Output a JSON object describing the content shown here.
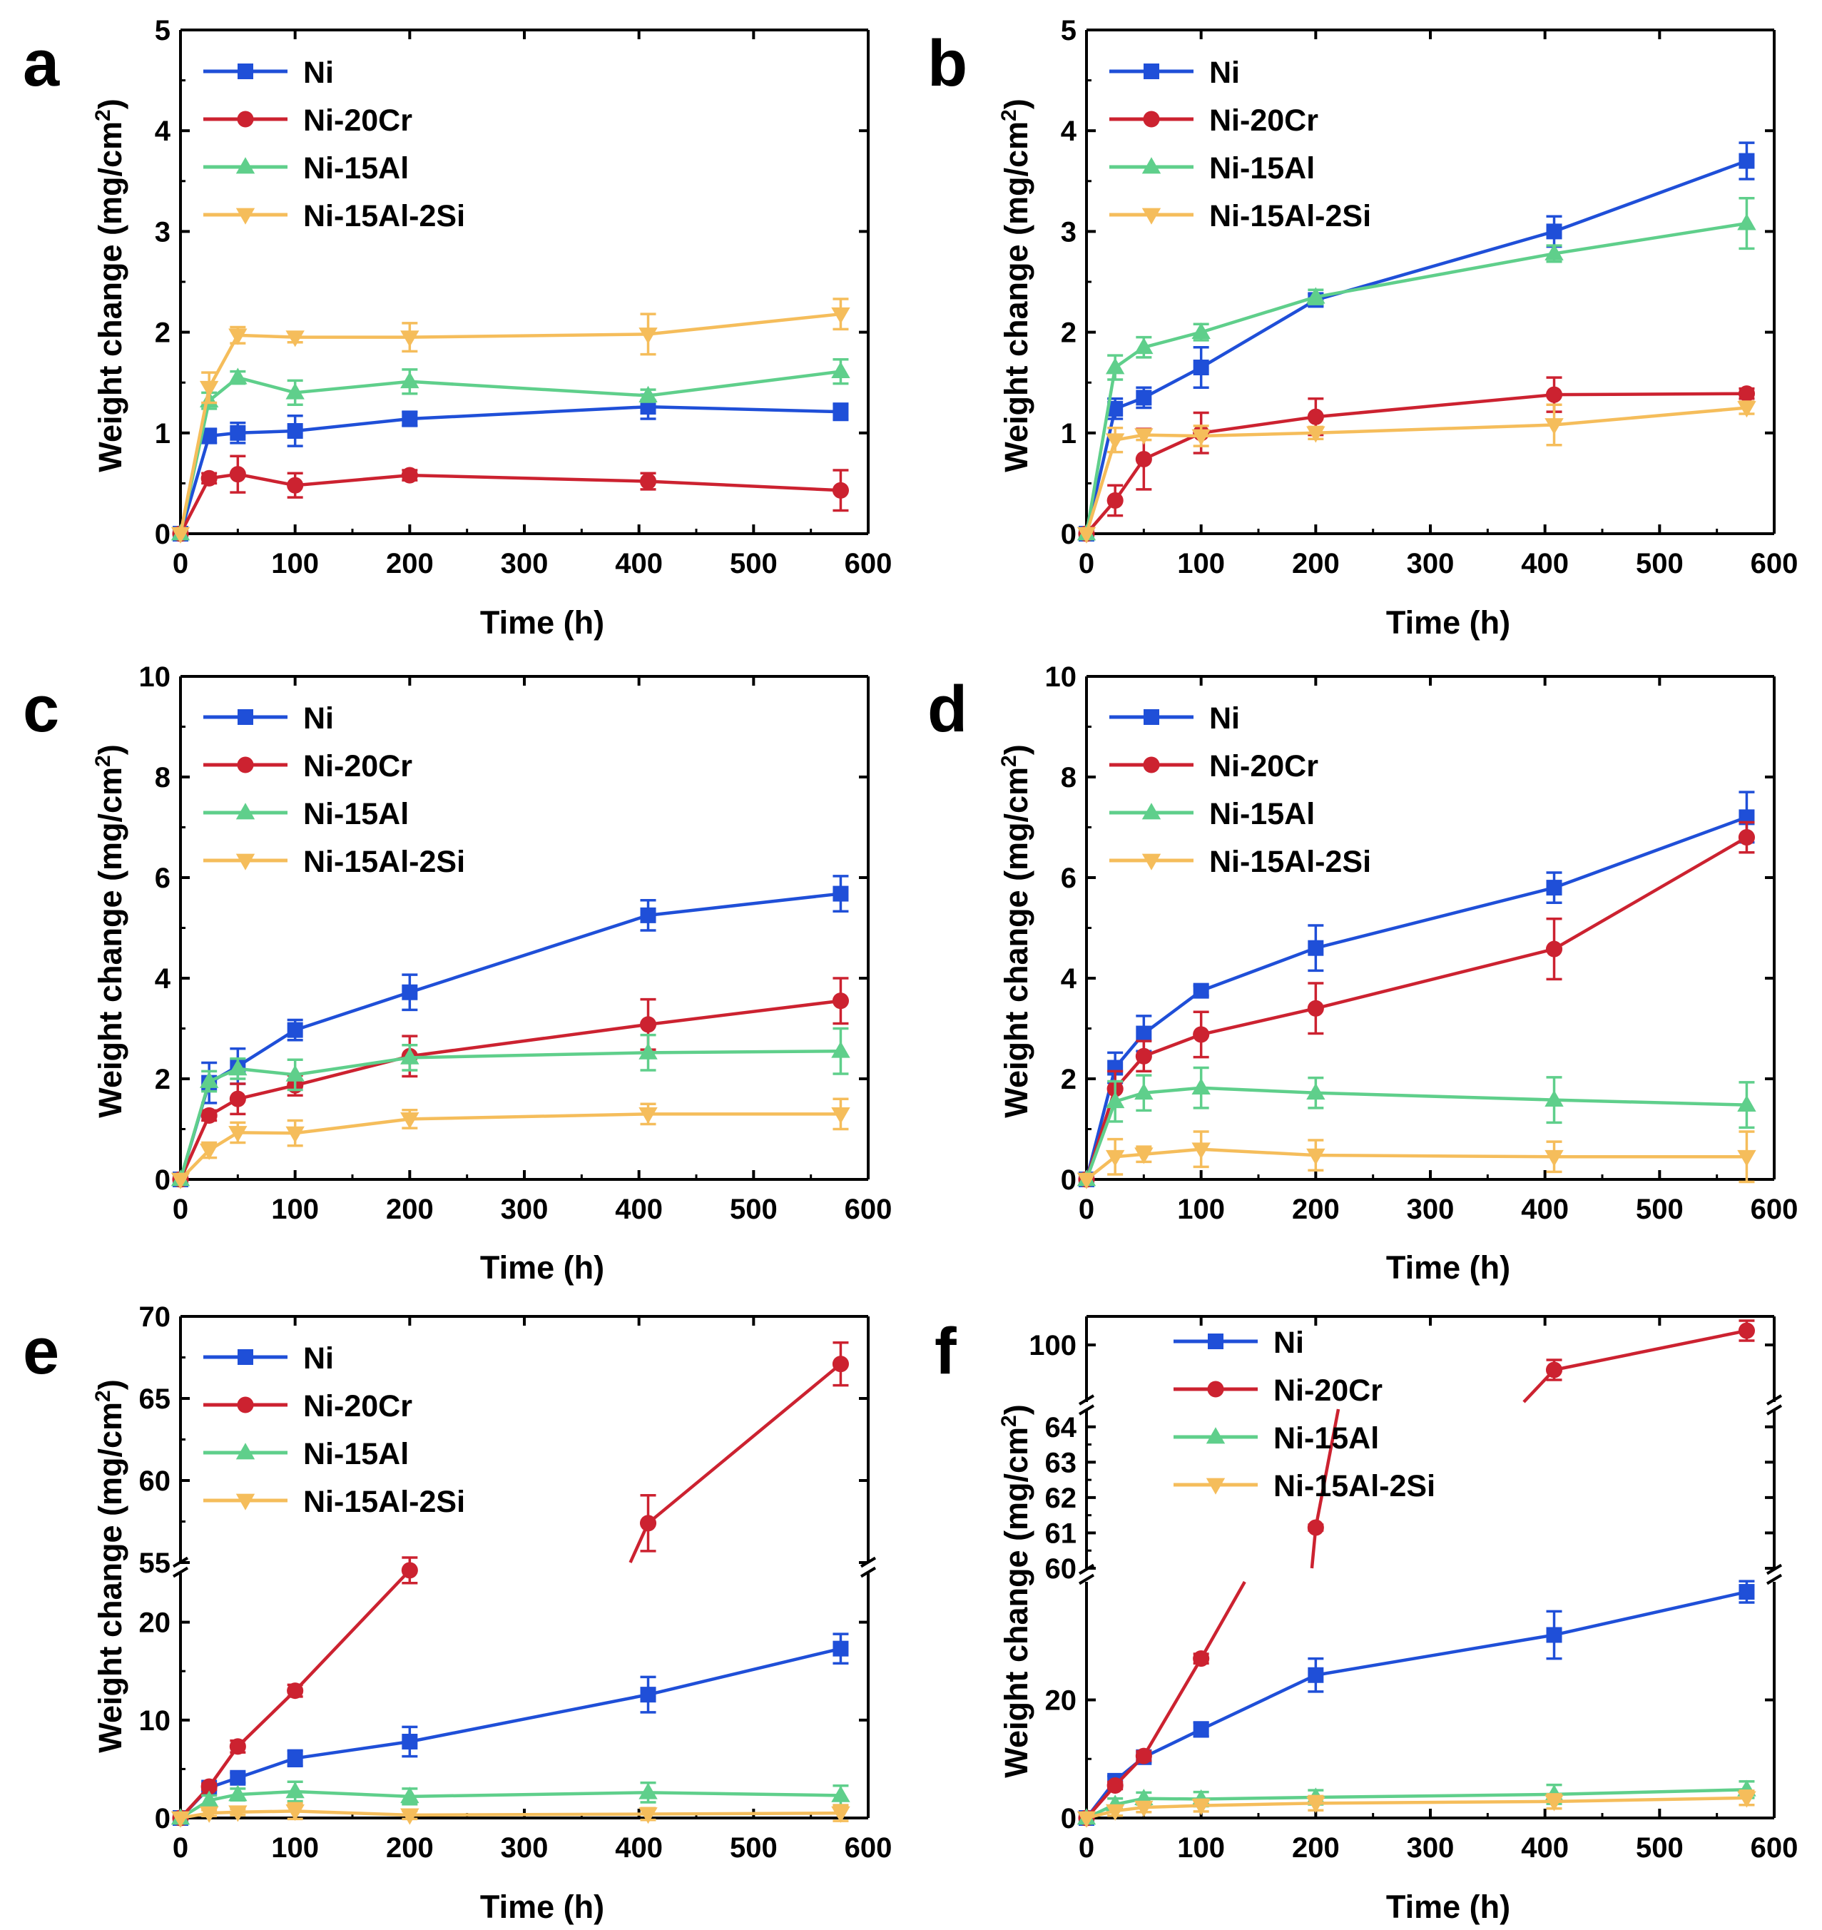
{
  "figure": {
    "series_names": [
      "Ni",
      "Ni-20Cr",
      "Ni-15Al",
      "Ni-15Al-2Si"
    ],
    "series_colors": [
      "#1f4fd8",
      "#cc2230",
      "#5fcf8b",
      "#f5bd5b"
    ],
    "series_markers": [
      "square",
      "circle",
      "triangle-up",
      "triangle-down"
    ]
  },
  "chart_data": [
    {
      "panel": "a",
      "type": "line",
      "xlabel": "Time (h)",
      "ylabel": "Weight change (mg/cm2)",
      "xlim": [
        0,
        600
      ],
      "ylim": [
        0,
        5
      ],
      "xticks": [
        0,
        100,
        200,
        300,
        400,
        500,
        600
      ],
      "yticks": [
        0,
        1,
        2,
        3,
        4,
        5
      ],
      "x": [
        0,
        25,
        50,
        100,
        200,
        408,
        576
      ],
      "series": [
        {
          "name": "Ni",
          "values": [
            0,
            0.97,
            1.0,
            1.02,
            1.14,
            1.26,
            1.21
          ],
          "errors": [
            0,
            0.07,
            0.1,
            0.15,
            0.07,
            0.12,
            0.08
          ]
        },
        {
          "name": "Ni-20Cr",
          "values": [
            0,
            0.55,
            0.59,
            0.48,
            0.58,
            0.52,
            0.43
          ],
          "errors": [
            0,
            0.05,
            0.18,
            0.12,
            0.05,
            0.08,
            0.2
          ]
        },
        {
          "name": "Ni-15Al",
          "values": [
            0,
            1.32,
            1.55,
            1.4,
            1.51,
            1.37,
            1.61
          ],
          "errors": [
            0,
            0.08,
            0.06,
            0.12,
            0.12,
            0.06,
            0.12
          ]
        },
        {
          "name": "Ni-15Al-2Si",
          "values": [
            0,
            1.45,
            1.97,
            1.95,
            1.95,
            1.98,
            2.18
          ],
          "errors": [
            0,
            0.15,
            0.08,
            0.05,
            0.14,
            0.2,
            0.15
          ]
        }
      ]
    },
    {
      "panel": "b",
      "type": "line",
      "xlabel": "Time (h)",
      "ylabel": "Weight change (mg/cm2)",
      "xlim": [
        0,
        600
      ],
      "ylim": [
        0,
        5
      ],
      "xticks": [
        0,
        100,
        200,
        300,
        400,
        500,
        600
      ],
      "yticks": [
        0,
        1,
        2,
        3,
        4,
        5
      ],
      "x": [
        0,
        25,
        50,
        100,
        200,
        408,
        576
      ],
      "series": [
        {
          "name": "Ni",
          "values": [
            0,
            1.24,
            1.35,
            1.65,
            2.32,
            3.0,
            3.7
          ],
          "errors": [
            0,
            0.1,
            0.1,
            0.2,
            0.06,
            0.15,
            0.18
          ]
        },
        {
          "name": "Ni-20Cr",
          "values": [
            0,
            0.33,
            0.74,
            1.0,
            1.16,
            1.38,
            1.39
          ],
          "errors": [
            0,
            0.15,
            0.3,
            0.2,
            0.18,
            0.17,
            0.05
          ]
        },
        {
          "name": "Ni-15Al",
          "values": [
            0,
            1.65,
            1.85,
            2.0,
            2.35,
            2.78,
            3.08
          ],
          "errors": [
            0,
            0.12,
            0.1,
            0.08,
            0.07,
            0.08,
            0.25
          ]
        },
        {
          "name": "Ni-15Al-2Si",
          "values": [
            0,
            0.93,
            0.98,
            0.97,
            1.0,
            1.08,
            1.25
          ],
          "errors": [
            0,
            0.12,
            0.05,
            0.1,
            0.06,
            0.2,
            0.06
          ]
        }
      ]
    },
    {
      "panel": "c",
      "type": "line",
      "xlabel": "Time (h)",
      "ylabel": "Weight change (mg/cm2)",
      "xlim": [
        0,
        600
      ],
      "ylim": [
        0,
        10
      ],
      "xticks": [
        0,
        100,
        200,
        300,
        400,
        500,
        600
      ],
      "yticks": [
        0,
        2,
        4,
        6,
        8,
        10
      ],
      "x": [
        0,
        25,
        50,
        100,
        200,
        408,
        576
      ],
      "series": [
        {
          "name": "Ni",
          "values": [
            0,
            1.92,
            2.25,
            2.97,
            3.72,
            5.25,
            5.68
          ],
          "errors": [
            0,
            0.4,
            0.35,
            0.2,
            0.35,
            0.3,
            0.35
          ]
        },
        {
          "name": "Ni-20Cr",
          "values": [
            0,
            1.27,
            1.6,
            1.87,
            2.45,
            3.08,
            3.55
          ],
          "errors": [
            0,
            0.1,
            0.3,
            0.2,
            0.4,
            0.5,
            0.45
          ]
        },
        {
          "name": "Ni-15Al",
          "values": [
            0,
            1.95,
            2.2,
            2.08,
            2.42,
            2.52,
            2.55
          ],
          "errors": [
            0,
            0.2,
            0.2,
            0.3,
            0.25,
            0.35,
            0.45
          ]
        },
        {
          "name": "Ni-15Al-2Si",
          "values": [
            0,
            0.58,
            0.93,
            0.92,
            1.2,
            1.3,
            1.3
          ],
          "errors": [
            0,
            0.15,
            0.2,
            0.25,
            0.18,
            0.2,
            0.3
          ]
        }
      ]
    },
    {
      "panel": "d",
      "type": "line",
      "xlabel": "Time (h)",
      "ylabel": "Weight change (mg/cm2)",
      "xlim": [
        0,
        600
      ],
      "ylim": [
        0,
        10
      ],
      "xticks": [
        0,
        100,
        200,
        300,
        400,
        500,
        600
      ],
      "yticks": [
        0,
        2,
        4,
        6,
        8,
        10
      ],
      "x": [
        0,
        25,
        50,
        100,
        200,
        408,
        576
      ],
      "series": [
        {
          "name": "Ni",
          "values": [
            0,
            2.22,
            2.9,
            3.75,
            4.6,
            5.8,
            7.2
          ],
          "errors": [
            0,
            0.3,
            0.35,
            0.1,
            0.45,
            0.3,
            0.5
          ]
        },
        {
          "name": "Ni-20Cr",
          "values": [
            0,
            1.8,
            2.45,
            2.88,
            3.4,
            4.58,
            6.8
          ],
          "errors": [
            0,
            0.35,
            0.3,
            0.45,
            0.5,
            0.6,
            0.3
          ]
        },
        {
          "name": "Ni-15Al",
          "values": [
            0,
            1.55,
            1.72,
            1.82,
            1.72,
            1.58,
            1.48
          ],
          "errors": [
            0,
            0.4,
            0.35,
            0.4,
            0.3,
            0.45,
            0.45
          ]
        },
        {
          "name": "Ni-15Al-2Si",
          "values": [
            0,
            0.45,
            0.5,
            0.6,
            0.48,
            0.45,
            0.45
          ],
          "errors": [
            0,
            0.35,
            0.15,
            0.35,
            0.3,
            0.3,
            0.5
          ]
        }
      ]
    },
    {
      "panel": "e",
      "type": "line",
      "broken_axis": true,
      "xlabel": "Time (h)",
      "ylabel": "Weight change (mg/cm2)",
      "xlim": [
        0,
        600
      ],
      "xticks": [
        0,
        100,
        200,
        300,
        400,
        500,
        600
      ],
      "y_lower_range": [
        0,
        25
      ],
      "y_upper_range": [
        55,
        70
      ],
      "yticks_lower": [
        0,
        10,
        20
      ],
      "yticks_upper": [
        55,
        60,
        65,
        70
      ],
      "x": [
        0,
        25,
        50,
        100,
        200,
        408,
        576
      ],
      "series": [
        {
          "name": "Ni",
          "values": [
            0,
            3.1,
            4.1,
            6.1,
            7.8,
            12.6,
            17.3
          ],
          "errors": [
            0,
            0.3,
            0.5,
            0.8,
            1.5,
            1.8,
            1.5
          ]
        },
        {
          "name": "Ni-20Cr",
          "values": [
            0,
            3.2,
            7.3,
            13.0,
            25.3,
            57.4,
            67.1
          ],
          "errors": [
            0,
            0.3,
            0.6,
            0.6,
            1.3,
            1.7,
            1.3
          ]
        },
        {
          "name": "Ni-15Al",
          "values": [
            0,
            1.8,
            2.4,
            2.7,
            2.2,
            2.6,
            2.3
          ],
          "errors": [
            0,
            0.5,
            0.6,
            1.0,
            0.8,
            1.0,
            1.0
          ]
        },
        {
          "name": "Ni-15Al-2Si",
          "values": [
            0,
            0.5,
            0.6,
            0.7,
            0.3,
            0.4,
            0.5
          ],
          "errors": [
            0,
            0.3,
            0.3,
            0.8,
            0.4,
            0.6,
            0.8
          ]
        }
      ]
    },
    {
      "panel": "f",
      "type": "line",
      "broken_axis": true,
      "xlabel": "Time (h)",
      "ylabel": "Weight change (mg/cm2)",
      "xlim": [
        0,
        600
      ],
      "xticks": [
        0,
        100,
        200,
        300,
        400,
        500,
        600
      ],
      "y_lower_range": [
        0,
        40
      ],
      "y_mid_range": [
        60,
        64.5
      ],
      "y_upper_range": [
        92,
        104
      ],
      "yticks_lower": [
        0,
        20
      ],
      "yticks_mid": [
        60,
        61,
        62,
        63,
        64
      ],
      "yticks_upper": [
        100
      ],
      "x": [
        0,
        25,
        50,
        100,
        200,
        408,
        576
      ],
      "series": [
        {
          "name": "Ni",
          "values": [
            0,
            6.3,
            10.3,
            15.0,
            24.2,
            31.0,
            38.3
          ],
          "errors": [
            0,
            0.8,
            0.8,
            1.2,
            2.8,
            4.0,
            1.8
          ]
        },
        {
          "name": "Ni-20Cr",
          "values": [
            0,
            5.5,
            10.5,
            27.0,
            61.15,
            96.5,
            102.0
          ],
          "errors": [
            0,
            0.6,
            0.8,
            0.8,
            0.08,
            1.4,
            1.4
          ]
        },
        {
          "name": "Ni-15Al",
          "values": [
            0,
            2.3,
            3.3,
            3.2,
            3.5,
            4.0,
            4.8
          ],
          "errors": [
            0,
            1.0,
            1.0,
            1.2,
            1.2,
            1.6,
            1.4
          ]
        },
        {
          "name": "Ni-15Al-2Si",
          "values": [
            0,
            1.2,
            1.8,
            2.1,
            2.5,
            2.8,
            3.4
          ],
          "errors": [
            0,
            0.8,
            0.8,
            1.0,
            1.2,
            1.2,
            1.2
          ]
        }
      ]
    }
  ]
}
